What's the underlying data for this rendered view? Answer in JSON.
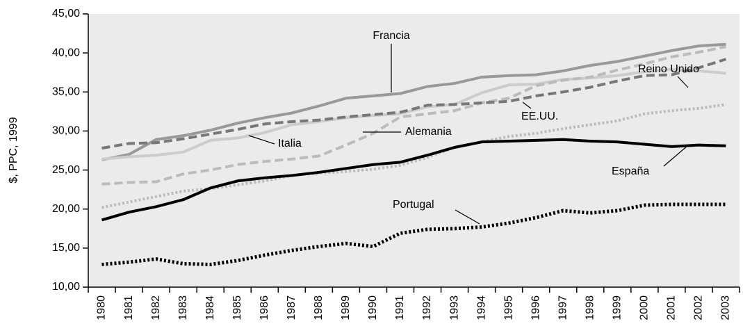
{
  "chart_data": {
    "type": "line",
    "y_label": "$, PPC, 1999",
    "categories": [
      "1980",
      "1981",
      "1982",
      "1983",
      "1984",
      "1985",
      "1986",
      "1987",
      "1988",
      "1989",
      "1990",
      "1991",
      "1992",
      "1993",
      "1994",
      "1995",
      "1996",
      "1997",
      "1998",
      "1999",
      "2000",
      "2001",
      "2002",
      "2003"
    ],
    "ylim": [
      10,
      45
    ],
    "yticks": [
      {
        "value": 10,
        "label": "10,00"
      },
      {
        "value": 15,
        "label": "15,00"
      },
      {
        "value": 20,
        "label": "20,00"
      },
      {
        "value": 25,
        "label": "25,00"
      },
      {
        "value": 30,
        "label": "30,00"
      },
      {
        "value": 35,
        "label": "35,00"
      },
      {
        "value": 40,
        "label": "40,00"
      },
      {
        "value": 45,
        "label": "45,00"
      }
    ],
    "series": [
      {
        "name": "Francia",
        "color": "#999999",
        "style": "solid",
        "values": [
          26.3,
          27.0,
          28.9,
          29.4,
          30.1,
          31.0,
          31.7,
          32.3,
          33.2,
          34.2,
          34.5,
          34.8,
          35.7,
          36.1,
          36.9,
          37.1,
          37.2,
          37.7,
          38.4,
          38.9,
          39.6,
          40.3,
          40.9,
          41.1
        ]
      },
      {
        "name": "Italia",
        "color": "#cccccc",
        "style": "solid",
        "values": [
          26.4,
          26.7,
          26.9,
          27.3,
          28.8,
          29.1,
          29.8,
          30.8,
          31.2,
          31.7,
          32.0,
          32.2,
          33.1,
          33.4,
          34.9,
          35.9,
          36.0,
          36.6,
          36.8,
          37.1,
          37.6,
          37.9,
          37.7,
          37.4
        ]
      },
      {
        "name": "Alemania",
        "color": "#bbbbbb",
        "style": "dashed",
        "values": [
          23.2,
          23.4,
          23.5,
          24.5,
          25.0,
          25.7,
          26.1,
          26.4,
          26.8,
          28.2,
          29.7,
          31.8,
          32.2,
          32.6,
          33.6,
          34.2,
          35.8,
          36.5,
          36.9,
          37.8,
          38.6,
          39.5,
          40.1,
          40.8
        ]
      },
      {
        "name": "EE.UU.",
        "color": "#777777",
        "style": "dashed",
        "values": [
          27.8,
          28.4,
          28.5,
          29.0,
          29.6,
          30.2,
          30.9,
          31.2,
          31.4,
          31.8,
          32.1,
          32.4,
          33.3,
          33.4,
          33.6,
          33.8,
          34.5,
          35.0,
          35.6,
          36.4,
          37.1,
          37.2,
          38.1,
          39.2
        ]
      },
      {
        "name": "Reino Unido",
        "color": "#bbbbbb",
        "style": "dotted",
        "values": [
          20.2,
          20.9,
          21.6,
          22.3,
          22.6,
          23.1,
          23.6,
          24.3,
          24.6,
          24.8,
          25.1,
          25.6,
          26.6,
          27.9,
          28.6,
          29.3,
          29.7,
          30.3,
          30.8,
          31.3,
          32.2,
          32.6,
          32.9,
          33.4
        ]
      },
      {
        "name": "España",
        "color": "#000000",
        "style": "solid",
        "values": [
          18.6,
          19.6,
          20.3,
          21.2,
          22.7,
          23.6,
          24.0,
          24.3,
          24.7,
          25.2,
          25.7,
          26.0,
          26.9,
          27.9,
          28.6,
          28.7,
          28.8,
          28.9,
          28.7,
          28.6,
          28.3,
          28.0,
          28.2,
          28.1
        ]
      },
      {
        "name": "Portugal",
        "color": "#000000",
        "style": "dotted",
        "values": [
          12.9,
          13.2,
          13.6,
          13.0,
          12.9,
          13.4,
          14.1,
          14.7,
          15.2,
          15.6,
          15.2,
          16.9,
          17.4,
          17.5,
          17.7,
          18.2,
          18.9,
          19.8,
          19.5,
          19.8,
          20.5,
          20.6,
          20.6,
          20.6
        ]
      }
    ]
  }
}
